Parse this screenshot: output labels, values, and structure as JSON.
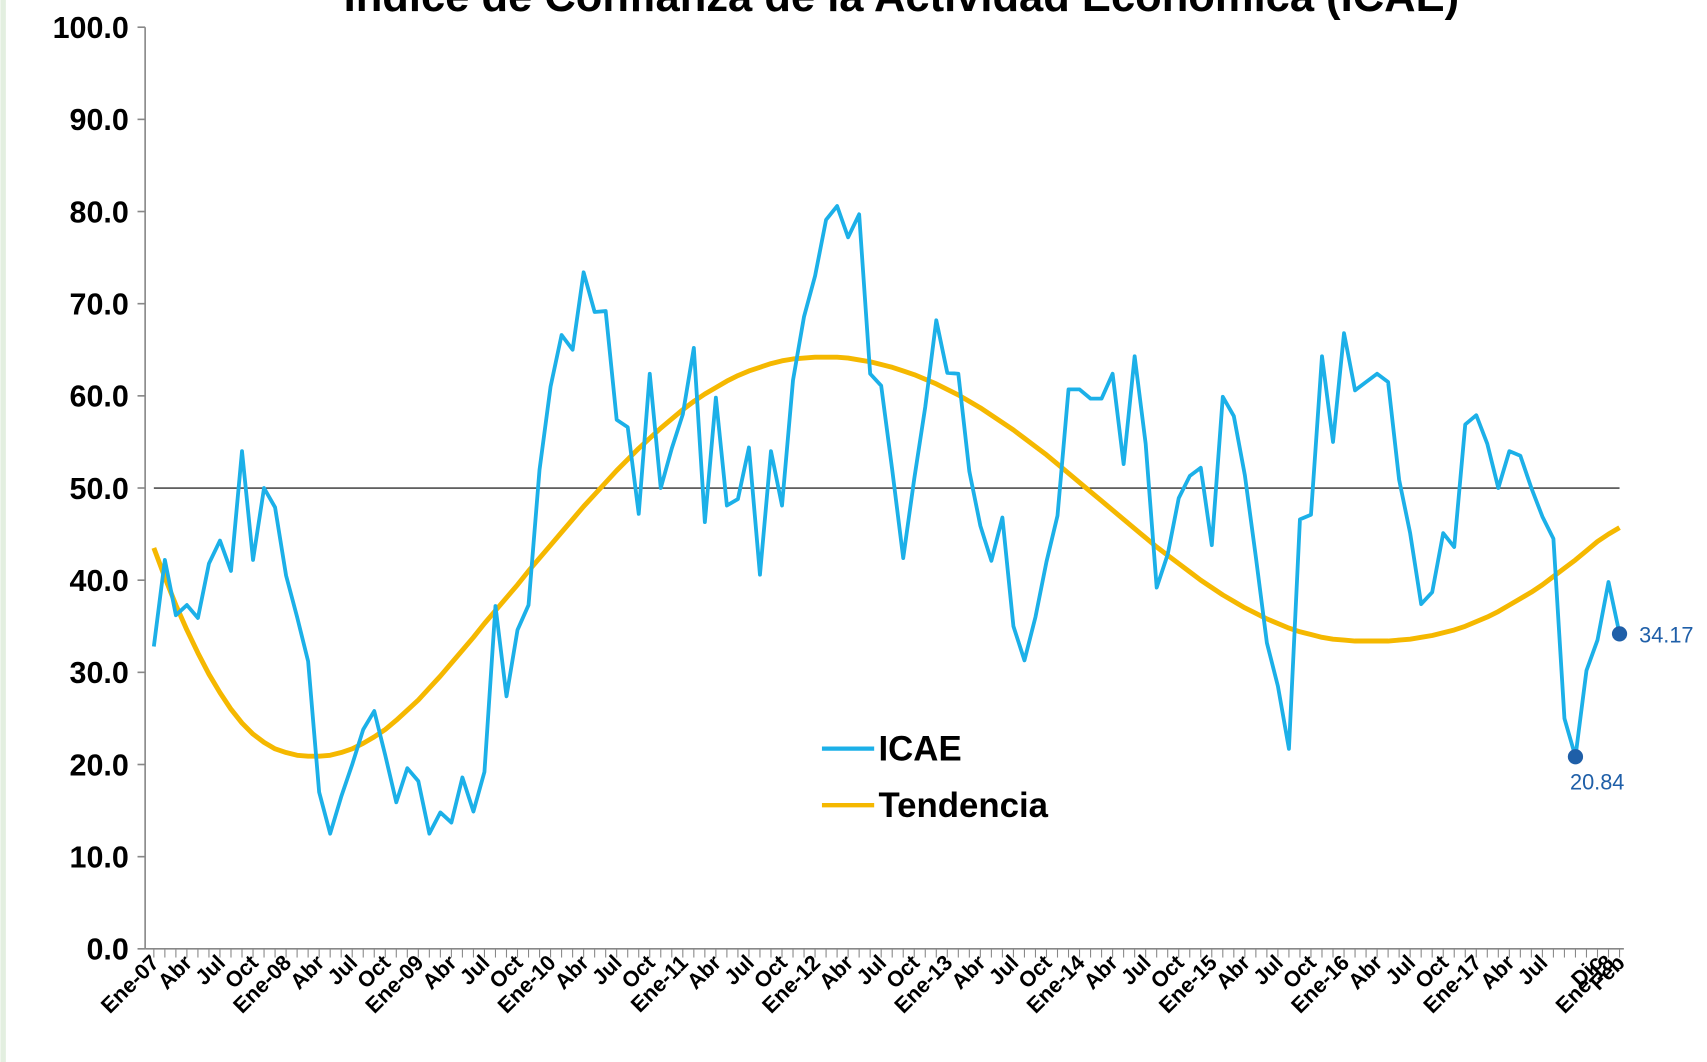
{
  "chart_data": {
    "type": "line",
    "title": "Índice de Confianza de la Actividad Económica (ICAE)",
    "categories": [
      "Ene-07",
      null,
      null,
      "Abr",
      null,
      null,
      "Jul",
      null,
      null,
      "Oct",
      null,
      null,
      "Ene-08",
      null,
      null,
      "Abr",
      null,
      null,
      "Jul",
      null,
      null,
      "Oct",
      null,
      null,
      "Ene-09",
      null,
      null,
      "Abr",
      null,
      null,
      "Jul",
      null,
      null,
      "Oct",
      null,
      null,
      "Ene-10",
      null,
      null,
      "Abr",
      null,
      null,
      "Jul",
      null,
      null,
      "Oct",
      null,
      null,
      "Ene-11",
      null,
      null,
      "Abr",
      null,
      null,
      "Jul",
      null,
      null,
      "Oct",
      null,
      null,
      "Ene-12",
      null,
      null,
      "Abr",
      null,
      null,
      "Jul",
      null,
      null,
      "Oct",
      null,
      null,
      "Ene-13",
      null,
      null,
      "Abr",
      null,
      null,
      "Jul",
      null,
      null,
      "Oct",
      null,
      null,
      "Ene-14",
      null,
      null,
      "Abr",
      null,
      null,
      "Jul",
      null,
      null,
      "Oct",
      null,
      null,
      "Ene-15",
      null,
      null,
      "Abr",
      null,
      null,
      "Jul",
      null,
      null,
      "Oct",
      null,
      null,
      "Ene-16",
      null,
      null,
      "Abr",
      null,
      null,
      "Jul",
      null,
      null,
      "Oct",
      null,
      null,
      "Ene-17",
      null,
      null,
      "Abr",
      null,
      null,
      "Jul",
      null,
      null,
      null,
      null,
      "Dic",
      "Ene-18",
      "Feb"
    ],
    "series": [
      {
        "name": "ICAE",
        "color": "#1cb0e8",
        "marker_color": "#1f5fa8",
        "labeled_points": [
          129,
          133
        ],
        "values": [
          32.8,
          42.2,
          36.2,
          37.3,
          35.9,
          41.8,
          44.3,
          41.0,
          54.0,
          42.2,
          50.0,
          47.9,
          40.5,
          36.0,
          31.2,
          17.0,
          12.5,
          16.5,
          20.0,
          23.8,
          25.8,
          21.0,
          15.9,
          19.6,
          18.2,
          12.5,
          14.8,
          13.7,
          18.6,
          14.9,
          19.2,
          37.2,
          27.4,
          34.6,
          37.3,
          52.0,
          61.0,
          66.6,
          65.0,
          73.4,
          69.1,
          69.2,
          57.4,
          56.6,
          47.2,
          62.4,
          50.0,
          54.3,
          58.0,
          65.2,
          46.3,
          59.8,
          48.1,
          48.8,
          54.4,
          40.6,
          54.0,
          48.1,
          61.7,
          68.6,
          73.0,
          79.1,
          80.6,
          77.2,
          79.7,
          62.4,
          61.1,
          52.0,
          42.4,
          51.0,
          58.8,
          68.2,
          62.5,
          62.4,
          51.8,
          45.9,
          42.1,
          46.8,
          35.0,
          31.3,
          36.0,
          42.0,
          47.0,
          60.7,
          60.7,
          59.7,
          59.7,
          62.4,
          52.6,
          64.3,
          54.8,
          39.2,
          42.8,
          48.9,
          51.3,
          52.2,
          43.8,
          59.9,
          57.8,
          51.4,
          42.5,
          33.2,
          28.5,
          21.7,
          46.6,
          47.1,
          64.3,
          55.0,
          66.8,
          60.6,
          61.5,
          62.4,
          61.5,
          50.9,
          45.1,
          37.4,
          38.7,
          45.1,
          43.6,
          56.9,
          57.9,
          54.8,
          50.0,
          54.0,
          53.5,
          50.0,
          46.9,
          44.5,
          25.0,
          20.84,
          30.2,
          33.5,
          39.8,
          34.17
        ]
      },
      {
        "name": "Tendencia",
        "color": "#f5b800",
        "values": [
          43.5,
          40.3,
          37.3,
          34.6,
          32.1,
          29.8,
          27.8,
          26.0,
          24.5,
          23.3,
          22.4,
          21.7,
          21.3,
          21.0,
          20.9,
          20.9,
          21.0,
          21.3,
          21.7,
          22.3,
          23.0,
          23.8,
          24.8,
          25.9,
          27.0,
          28.3,
          29.6,
          31.0,
          32.4,
          33.8,
          35.3,
          36.7,
          38.1,
          39.5,
          41.0,
          42.4,
          43.8,
          45.2,
          46.6,
          48.0,
          49.3,
          50.6,
          51.9,
          53.1,
          54.3,
          55.4,
          56.5,
          57.5,
          58.5,
          59.4,
          60.2,
          60.9,
          61.6,
          62.2,
          62.7,
          63.1,
          63.5,
          63.8,
          64.0,
          64.1,
          64.2,
          64.2,
          64.2,
          64.1,
          63.9,
          63.7,
          63.4,
          63.1,
          62.7,
          62.3,
          61.8,
          61.3,
          60.7,
          60.1,
          59.4,
          58.7,
          57.9,
          57.1,
          56.3,
          55.4,
          54.5,
          53.6,
          52.6,
          51.6,
          50.6,
          49.6,
          48.6,
          47.6,
          46.6,
          45.6,
          44.6,
          43.6,
          42.7,
          41.8,
          40.9,
          40.0,
          39.2,
          38.4,
          37.7,
          37.0,
          36.4,
          35.8,
          35.3,
          34.8,
          34.4,
          34.1,
          33.8,
          33.6,
          33.5,
          33.4,
          33.4,
          33.4,
          33.4,
          33.5,
          33.6,
          33.8,
          34.0,
          34.3,
          34.6,
          35.0,
          35.5,
          36.0,
          36.6,
          37.3,
          38.0,
          38.7,
          39.5,
          40.4,
          41.3,
          42.2,
          43.2,
          44.2,
          45.0,
          45.7
        ]
      }
    ],
    "reference_line": 50,
    "ylim": [
      0,
      100
    ],
    "yticks": [
      {
        "value": 0,
        "label": "0.0"
      },
      {
        "value": 10,
        "label": "10.0"
      },
      {
        "value": 20,
        "label": "20.0"
      },
      {
        "value": 30,
        "label": "30.0"
      },
      {
        "value": 40,
        "label": "40.0"
      },
      {
        "value": 50,
        "label": "50.0"
      },
      {
        "value": 60,
        "label": "60.0"
      },
      {
        "value": 70,
        "label": "70.0"
      },
      {
        "value": 80,
        "label": "80.0"
      },
      {
        "value": 90,
        "label": "90.0"
      },
      {
        "value": 100,
        "label": "100.0"
      }
    ],
    "grid": false,
    "legend": "center"
  }
}
